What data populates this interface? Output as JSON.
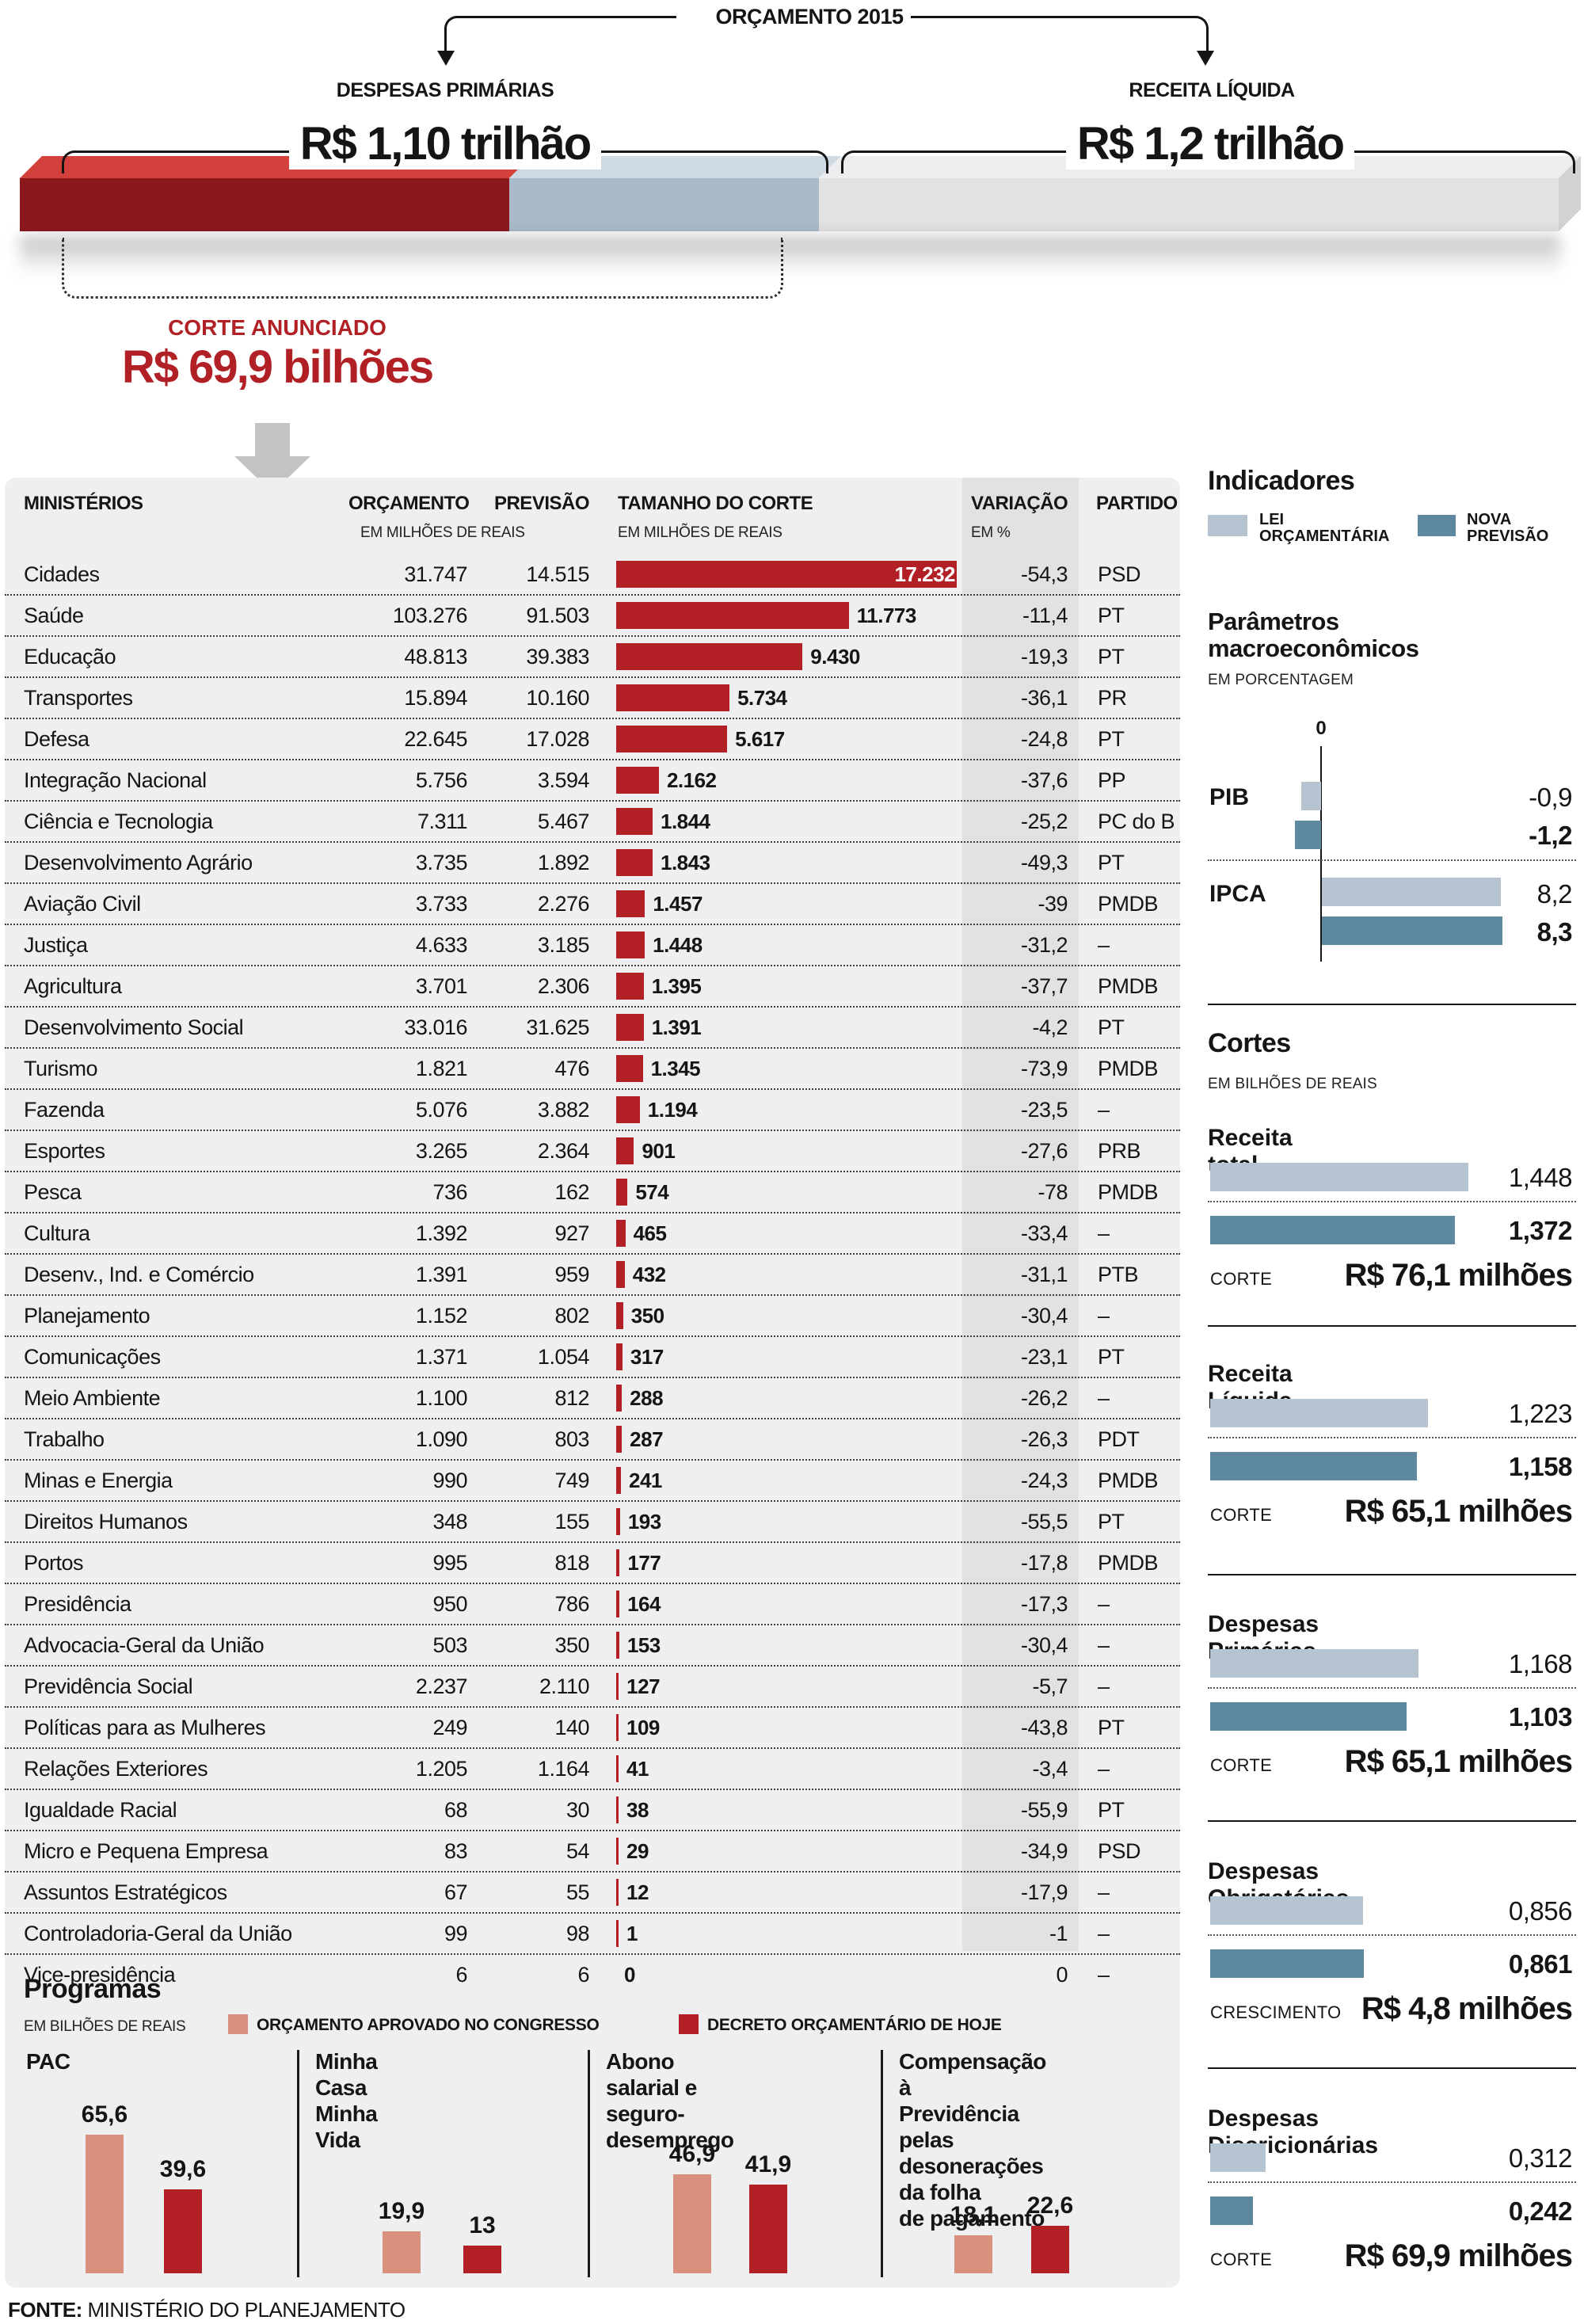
{
  "header": {
    "title": "ORÇAMENTO 2015",
    "left": {
      "label": "DESPESAS PRIMÁRIAS",
      "value": "R$ 1,10 trilhão"
    },
    "right": {
      "label": "RECEITA LÍQUIDA",
      "value": "R$ 1,2 trilhão"
    },
    "corte": {
      "label": "CORTE ANUNCIADO",
      "value": "R$ 69,9 bilhões"
    }
  },
  "colors": {
    "table_bar_red": "#b22026",
    "highlight_red": "#b02025",
    "bar3d_red_top": "#d4403c",
    "bar3d_red_front": "#8c181d",
    "bar3d_blue_top": "#cfd9e4",
    "bar3d_blue_front": "#a9bbc8",
    "bar3d_gray_top": "#ededef",
    "bar3d_gray_front": "#e2e2e4",
    "lei_blue": "#b6c4d1",
    "nova_blue": "#5e87a0",
    "aprovado_salmon": "#d9917f",
    "decreto_red": "#b22026"
  },
  "table": {
    "col_ministerios": "MINISTÉRIOS",
    "col_orcamento": "ORÇAMENTO",
    "col_previsao": "PREVISÃO",
    "col_corte": "TAMANHO DO CORTE",
    "col_variacao": "VARIAÇÃO",
    "col_partido": "PARTIDO",
    "sub_milhoes": "EM MILHÕES DE REAIS",
    "sub_percent": "EM %",
    "rows": [
      {
        "name": "Cidades",
        "orcamento": "31.747",
        "previsao": "14.515",
        "corte": "17.232",
        "corte_value": 17232,
        "variacao": "-54,3",
        "partido": "PSD"
      },
      {
        "name": "Saúde",
        "orcamento": "103.276",
        "previsao": "91.503",
        "corte": "11.773",
        "corte_value": 11773,
        "variacao": "-11,4",
        "partido": "PT"
      },
      {
        "name": "Educação",
        "orcamento": "48.813",
        "previsao": "39.383",
        "corte": "9.430",
        "corte_value": 9430,
        "variacao": "-19,3",
        "partido": "PT"
      },
      {
        "name": "Transportes",
        "orcamento": "15.894",
        "previsao": "10.160",
        "corte": "5.734",
        "corte_value": 5734,
        "variacao": "-36,1",
        "partido": "PR"
      },
      {
        "name": "Defesa",
        "orcamento": "22.645",
        "previsao": "17.028",
        "corte": "5.617",
        "corte_value": 5617,
        "variacao": "-24,8",
        "partido": "PT"
      },
      {
        "name": "Integração Nacional",
        "orcamento": "5.756",
        "previsao": "3.594",
        "corte": "2.162",
        "corte_value": 2162,
        "variacao": "-37,6",
        "partido": "PP"
      },
      {
        "name": "Ciência e Tecnologia",
        "orcamento": "7.311",
        "previsao": "5.467",
        "corte": "1.844",
        "corte_value": 1844,
        "variacao": "-25,2",
        "partido": "PC do B"
      },
      {
        "name": "Desenvolvimento Agrário",
        "orcamento": "3.735",
        "previsao": "1.892",
        "corte": "1.843",
        "corte_value": 1843,
        "variacao": "-49,3",
        "partido": "PT"
      },
      {
        "name": "Aviação Civil",
        "orcamento": "3.733",
        "previsao": "2.276",
        "corte": "1.457",
        "corte_value": 1457,
        "variacao": "-39",
        "partido": "PMDB"
      },
      {
        "name": "Justiça",
        "orcamento": "4.633",
        "previsao": "3.185",
        "corte": "1.448",
        "corte_value": 1448,
        "variacao": "-31,2",
        "partido": "–"
      },
      {
        "name": "Agricultura",
        "orcamento": "3.701",
        "previsao": "2.306",
        "corte": "1.395",
        "corte_value": 1395,
        "variacao": "-37,7",
        "partido": "PMDB"
      },
      {
        "name": "Desenvolvimento Social",
        "orcamento": "33.016",
        "previsao": "31.625",
        "corte": "1.391",
        "corte_value": 1391,
        "variacao": "-4,2",
        "partido": "PT"
      },
      {
        "name": "Turismo",
        "orcamento": "1.821",
        "previsao": "476",
        "corte": "1.345",
        "corte_value": 1345,
        "variacao": "-73,9",
        "partido": "PMDB"
      },
      {
        "name": "Fazenda",
        "orcamento": "5.076",
        "previsao": "3.882",
        "corte": "1.194",
        "corte_value": 1194,
        "variacao": "-23,5",
        "partido": "–"
      },
      {
        "name": "Esportes",
        "orcamento": "3.265",
        "previsao": "2.364",
        "corte": "901",
        "corte_value": 901,
        "variacao": "-27,6",
        "partido": "PRB"
      },
      {
        "name": "Pesca",
        "orcamento": "736",
        "previsao": "162",
        "corte": "574",
        "corte_value": 574,
        "variacao": "-78",
        "partido": "PMDB"
      },
      {
        "name": "Cultura",
        "orcamento": "1.392",
        "previsao": "927",
        "corte": "465",
        "corte_value": 465,
        "variacao": "-33,4",
        "partido": "–"
      },
      {
        "name": "Desenv., Ind. e Comércio",
        "orcamento": "1.391",
        "previsao": "959",
        "corte": "432",
        "corte_value": 432,
        "variacao": "-31,1",
        "partido": "PTB"
      },
      {
        "name": "Planejamento",
        "orcamento": "1.152",
        "previsao": "802",
        "corte": "350",
        "corte_value": 350,
        "variacao": "-30,4",
        "partido": "–"
      },
      {
        "name": "Comunicações",
        "orcamento": "1.371",
        "previsao": "1.054",
        "corte": "317",
        "corte_value": 317,
        "variacao": "-23,1",
        "partido": "PT"
      },
      {
        "name": "Meio Ambiente",
        "orcamento": "1.100",
        "previsao": "812",
        "corte": "288",
        "corte_value": 288,
        "variacao": "-26,2",
        "partido": "–"
      },
      {
        "name": "Trabalho",
        "orcamento": "1.090",
        "previsao": "803",
        "corte": "287",
        "corte_value": 287,
        "variacao": "-26,3",
        "partido": "PDT"
      },
      {
        "name": "Minas e Energia",
        "orcamento": "990",
        "previsao": "749",
        "corte": "241",
        "corte_value": 241,
        "variacao": "-24,3",
        "partido": "PMDB"
      },
      {
        "name": "Direitos Humanos",
        "orcamento": "348",
        "previsao": "155",
        "corte": "193",
        "corte_value": 193,
        "variacao": "-55,5",
        "partido": "PT"
      },
      {
        "name": "Portos",
        "orcamento": "995",
        "previsao": "818",
        "corte": "177",
        "corte_value": 177,
        "variacao": "-17,8",
        "partido": "PMDB"
      },
      {
        "name": "Presidência",
        "orcamento": "950",
        "previsao": "786",
        "corte": "164",
        "corte_value": 164,
        "variacao": "-17,3",
        "partido": "–"
      },
      {
        "name": "Advocacia-Geral da União",
        "orcamento": "503",
        "previsao": "350",
        "corte": "153",
        "corte_value": 153,
        "variacao": "-30,4",
        "partido": "–"
      },
      {
        "name": "Previdência Social",
        "orcamento": "2.237",
        "previsao": "2.110",
        "corte": "127",
        "corte_value": 127,
        "variacao": "-5,7",
        "partido": "–"
      },
      {
        "name": "Políticas para as Mulheres",
        "orcamento": "249",
        "previsao": "140",
        "corte": "109",
        "corte_value": 109,
        "variacao": "-43,8",
        "partido": "PT"
      },
      {
        "name": "Relações Exteriores",
        "orcamento": "1.205",
        "previsao": "1.164",
        "corte": "41",
        "corte_value": 41,
        "variacao": "-3,4",
        "partido": "–"
      },
      {
        "name": "Igualdade Racial",
        "orcamento": "68",
        "previsao": "30",
        "corte": "38",
        "corte_value": 38,
        "variacao": "-55,9",
        "partido": "PT"
      },
      {
        "name": "Micro e Pequena Empresa",
        "orcamento": "83",
        "previsao": "54",
        "corte": "29",
        "corte_value": 29,
        "variacao": "-34,9",
        "partido": "PSD"
      },
      {
        "name": "Assuntos Estratégicos",
        "orcamento": "67",
        "previsao": "55",
        "corte": "12",
        "corte_value": 12,
        "variacao": "-17,9",
        "partido": "–"
      },
      {
        "name": "Controladoria-Geral da União",
        "orcamento": "99",
        "previsao": "98",
        "corte": "1",
        "corte_value": 1,
        "variacao": "-1",
        "partido": "–"
      },
      {
        "name": "Vice-presidência",
        "orcamento": "6",
        "previsao": "6",
        "corte": "0",
        "corte_value": 0,
        "variacao": "0",
        "partido": "–"
      }
    ]
  },
  "sidebar": {
    "title": "Indicadores",
    "legend": [
      {
        "label": "LEI\nORÇAMENTÁRIA",
        "color": "#b6c4d1"
      },
      {
        "label": "NOVA\nPREVISÃO",
        "color": "#5e87a0"
      }
    ],
    "parametros": {
      "title": "Parâmetros\nmacroeconômicos",
      "subtitle": "EM PORCENTAGEM",
      "zero_label": "0",
      "items": [
        {
          "label": "PIB",
          "lei": -0.9,
          "lei_label": "-0,9",
          "nova": -1.2,
          "nova_label": "-1,2"
        },
        {
          "label": "IPCA",
          "lei": 8.2,
          "lei_label": "8,2",
          "nova": 8.3,
          "nova_label": "8,3"
        }
      ]
    },
    "cortes": {
      "title": "Cortes",
      "subtitle": "EM BILHÕES DE REAIS",
      "sections": [
        {
          "title": "Receita total",
          "lei": 1.448,
          "lei_label": "1,448",
          "nova": 1.372,
          "nova_label": "1,372",
          "note_label": "CORTE",
          "note_value": "R$ 76,1 milhões"
        },
        {
          "title": "Receita Líquida",
          "lei": 1.223,
          "lei_label": "1,223",
          "nova": 1.158,
          "nova_label": "1,158",
          "note_label": "CORTE",
          "note_value": "R$ 65,1 milhões"
        },
        {
          "title": "Despesas Primárias",
          "lei": 1.168,
          "lei_label": "1,168",
          "nova": 1.103,
          "nova_label": "1,103",
          "note_label": "CORTE",
          "note_value": "R$ 65,1 milhões"
        },
        {
          "title": "Despesas Obrigatórias",
          "lei": 0.856,
          "lei_label": "0,856",
          "nova": 0.861,
          "nova_label": "0,861",
          "note_label": "CRESCIMENTO",
          "note_value": "R$ 4,8 milhões"
        },
        {
          "title": "Despesas Discricionárias",
          "lei": 0.312,
          "lei_label": "0,312",
          "nova": 0.242,
          "nova_label": "0,242",
          "note_label": "CORTE",
          "note_value": "R$ 69,9 milhões"
        }
      ]
    }
  },
  "programas": {
    "title": "Programas",
    "subtitle": "EM BILHÕES DE REAIS",
    "legend": [
      {
        "label": "ORÇAMENTO APROVADO NO CONGRESSO",
        "color": "#d9917f"
      },
      {
        "label": "DECRETO ORÇAMENTÁRIO DE HOJE",
        "color": "#b22026"
      }
    ],
    "groups": [
      {
        "label": "PAC",
        "aprovado": 65.6,
        "aprovado_label": "65,6",
        "decreto": 39.6,
        "decreto_label": "39,6"
      },
      {
        "label": "Minha Casa\nMinha Vida",
        "aprovado": 19.9,
        "aprovado_label": "19,9",
        "decreto": 13,
        "decreto_label": "13"
      },
      {
        "label": "Abono salarial e\nseguro-desemprego",
        "aprovado": 46.9,
        "aprovado_label": "46,9",
        "decreto": 41.9,
        "decreto_label": "41,9"
      },
      {
        "label": "Compensação à\nPrevidência pelas\ndesonerações da folha\nde pagamento",
        "aprovado": 18.1,
        "aprovado_label": "18,1",
        "decreto": 22.6,
        "decreto_label": "22,6"
      }
    ]
  },
  "fonte": {
    "label": "FONTE:",
    "value": " MINISTÉRIO DO PLANEJAMENTO"
  },
  "chart_data": [
    {
      "type": "bar",
      "title": "Orçamento 2015 (em trilhões de reais)",
      "categories": [
        "Despesas Primárias",
        "Receita Líquida"
      ],
      "values": [
        1.1,
        1.2
      ],
      "annotations": [
        "Corte anunciado: R$ 69,9 bilhões"
      ]
    },
    {
      "type": "table",
      "title": "Ministérios — orçamento, previsão e tamanho do corte (em milhões de reais; variação em %)",
      "columns": [
        "Ministério",
        "Orçamento",
        "Previsão",
        "Tamanho do corte",
        "Variação %",
        "Partido"
      ],
      "rows": [
        [
          "Cidades",
          31747,
          14515,
          17232,
          -54.3,
          "PSD"
        ],
        [
          "Saúde",
          103276,
          91503,
          11773,
          -11.4,
          "PT"
        ],
        [
          "Educação",
          48813,
          39383,
          9430,
          -19.3,
          "PT"
        ],
        [
          "Transportes",
          15894,
          10160,
          5734,
          -36.1,
          "PR"
        ],
        [
          "Defesa",
          22645,
          17028,
          5617,
          -24.8,
          "PT"
        ],
        [
          "Integração Nacional",
          5756,
          3594,
          2162,
          -37.6,
          "PP"
        ],
        [
          "Ciência e Tecnologia",
          7311,
          5467,
          1844,
          -25.2,
          "PC do B"
        ],
        [
          "Desenvolvimento Agrário",
          3735,
          1892,
          1843,
          -49.3,
          "PT"
        ],
        [
          "Aviação Civil",
          3733,
          2276,
          1457,
          -39,
          "PMDB"
        ],
        [
          "Justiça",
          4633,
          3185,
          1448,
          -31.2,
          "–"
        ],
        [
          "Agricultura",
          3701,
          2306,
          1395,
          -37.7,
          "PMDB"
        ],
        [
          "Desenvolvimento Social",
          33016,
          31625,
          1391,
          -4.2,
          "PT"
        ],
        [
          "Turismo",
          1821,
          476,
          1345,
          -73.9,
          "PMDB"
        ],
        [
          "Fazenda",
          5076,
          3882,
          1194,
          -23.5,
          "–"
        ],
        [
          "Esportes",
          3265,
          2364,
          901,
          -27.6,
          "PRB"
        ],
        [
          "Pesca",
          736,
          162,
          574,
          -78,
          "PMDB"
        ],
        [
          "Cultura",
          1392,
          927,
          465,
          -33.4,
          "–"
        ],
        [
          "Desenv., Ind. e Comércio",
          1391,
          959,
          432,
          -31.1,
          "PTB"
        ],
        [
          "Planejamento",
          1152,
          802,
          350,
          -30.4,
          "–"
        ],
        [
          "Comunicações",
          1371,
          1054,
          317,
          -23.1,
          "PT"
        ],
        [
          "Meio Ambiente",
          1100,
          812,
          288,
          -26.2,
          "–"
        ],
        [
          "Trabalho",
          1090,
          803,
          287,
          -26.3,
          "PDT"
        ],
        [
          "Minas e Energia",
          990,
          749,
          241,
          -24.3,
          "PMDB"
        ],
        [
          "Direitos Humanos",
          348,
          155,
          193,
          -55.5,
          "PT"
        ],
        [
          "Portos",
          995,
          818,
          177,
          -17.8,
          "PMDB"
        ],
        [
          "Presidência",
          950,
          786,
          164,
          -17.3,
          "–"
        ],
        [
          "Advocacia-Geral da União",
          503,
          350,
          153,
          -30.4,
          "–"
        ],
        [
          "Previdência Social",
          2237,
          2110,
          127,
          -5.7,
          "–"
        ],
        [
          "Políticas para as Mulheres",
          249,
          140,
          109,
          -43.8,
          "PT"
        ],
        [
          "Relações Exteriores",
          1205,
          1164,
          41,
          -3.4,
          "–"
        ],
        [
          "Igualdade Racial",
          68,
          30,
          38,
          -55.9,
          "PT"
        ],
        [
          "Micro e Pequena Empresa",
          83,
          54,
          29,
          -34.9,
          "PSD"
        ],
        [
          "Assuntos Estratégicos",
          67,
          55,
          12,
          -17.9,
          "–"
        ],
        [
          "Controladoria-Geral da União",
          99,
          98,
          1,
          -1,
          "–"
        ],
        [
          "Vice-presidência",
          6,
          6,
          0,
          0,
          "–"
        ]
      ]
    },
    {
      "type": "bar",
      "title": "Parâmetros macroeconômicos (em porcentagem)",
      "categories": [
        "PIB",
        "IPCA"
      ],
      "series": [
        {
          "name": "Lei Orçamentária",
          "values": [
            -0.9,
            8.2
          ]
        },
        {
          "name": "Nova Previsão",
          "values": [
            -1.2,
            8.3
          ]
        }
      ],
      "xlabel": "",
      "ylabel": "",
      "axis_zero_label": "0",
      "legend_position": "top"
    },
    {
      "type": "bar",
      "title": "Cortes (em bilhões de reais)",
      "categories": [
        "Receita total",
        "Receita Líquida",
        "Despesas Primárias",
        "Despesas Obrigatórias",
        "Despesas Discricionárias"
      ],
      "series": [
        {
          "name": "Lei Orçamentária",
          "values": [
            1.448,
            1.223,
            1.168,
            0.856,
            0.312
          ]
        },
        {
          "name": "Nova Previsão",
          "values": [
            1.372,
            1.158,
            1.103,
            0.861,
            0.242
          ]
        }
      ],
      "annotations": [
        "CORTE R$ 76,1 milhões",
        "CORTE R$ 65,1 milhões",
        "CORTE R$ 65,1 milhões",
        "CRESCIMENTO R$ 4,8 milhões",
        "CORTE R$ 69,9 milhões"
      ]
    },
    {
      "type": "bar",
      "title": "Programas (em bilhões de reais)",
      "categories": [
        "PAC",
        "Minha Casa Minha Vida",
        "Abono salarial e seguro-desemprego",
        "Compensação à Previdência pelas desonerações da folha de pagamento"
      ],
      "series": [
        {
          "name": "Orçamento aprovado no Congresso",
          "values": [
            65.6,
            19.9,
            46.9,
            18.1
          ]
        },
        {
          "name": "Decreto orçamentário de hoje",
          "values": [
            39.6,
            13,
            41.9,
            22.6
          ]
        }
      ]
    }
  ]
}
